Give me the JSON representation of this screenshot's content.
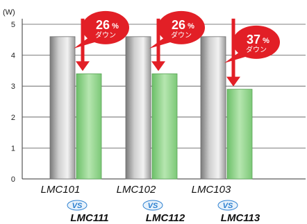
{
  "chart_data": {
    "type": "bar",
    "unit_label": "(W)",
    "ylim": [
      0,
      5
    ],
    "yticks": [
      0,
      1,
      2,
      3,
      4,
      5
    ],
    "grid": true,
    "categories": [
      {
        "top": "LMC101",
        "vs": "VS",
        "bottom": "LMC111"
      },
      {
        "top": "LMC102",
        "vs": "VS",
        "bottom": "LMC112"
      },
      {
        "top": "LMC103",
        "vs": "VS",
        "bottom": "LMC113"
      }
    ],
    "series": [
      {
        "values": [
          4.6,
          4.6,
          4.6
        ],
        "color": "#9a9a9a"
      },
      {
        "values": [
          3.4,
          3.4,
          2.9
        ],
        "color": "#8ed08a"
      }
    ],
    "annotations": [
      {
        "value": "26",
        "unit": "%",
        "text": "ダウン"
      },
      {
        "value": "26",
        "unit": "%",
        "text": "ダウン"
      },
      {
        "value": "37",
        "unit": "%",
        "text": "ダウン"
      }
    ],
    "arrow_color": "#e21f26",
    "bubble_color": "#e21f26"
  }
}
